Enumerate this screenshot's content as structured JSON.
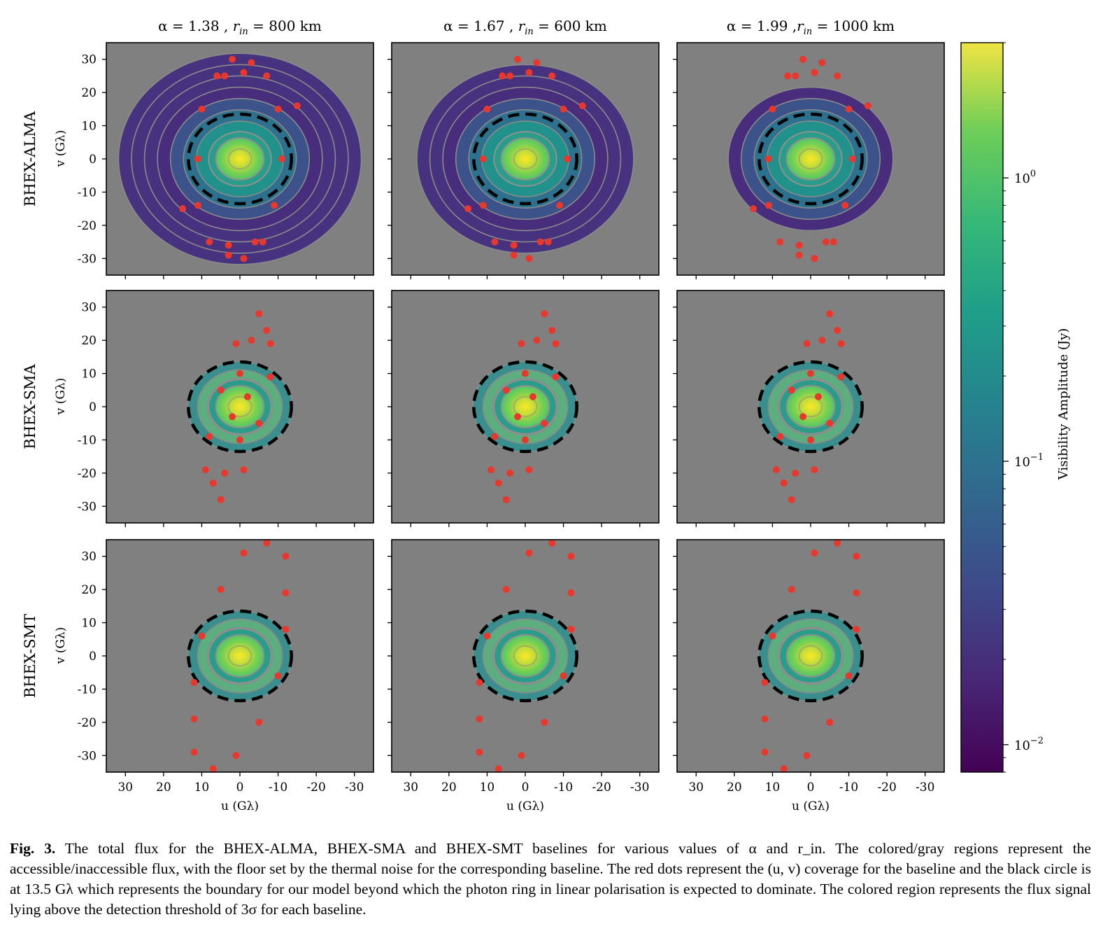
{
  "chart_data": {
    "type": "scatter",
    "figure_label": "Fig. 3.",
    "caption": "The total flux for the BHEX-ALMA, BHEX-SMA and BHEX-SMT baselines for various values of α and r_in. The colored/gray regions represent the accessible/inaccessible flux, with the floor set by the thermal noise for the corresponding baseline. The red dots represent the (u, v) coverage for the baseline and the black circle is at 13.5 Gλ which represents the boundary for our model beyond which the photon ring in linear polarisation is expected to dominate. The colored region represents the flux signal lying above the detection threshold of 3σ for each baseline.",
    "columns": [
      {
        "title": "α = 1.38 , r_in = 800 km",
        "alpha": 1.38,
        "r_in_km": 800
      },
      {
        "title": "α = 1.67 , r_in = 600 km",
        "alpha": 1.67,
        "r_in_km": 600
      },
      {
        "title": "α = 1.99 ,r_in = 1000 km",
        "alpha": 1.99,
        "r_in_km": 1000
      }
    ],
    "rows": [
      {
        "baseline": "BHEX-ALMA",
        "ylabel": "v (Gλ)",
        "visible_rings": {
          "1.38": 8,
          "1.67": 7,
          "1.99": 5
        },
        "points": [
          [
            2,
            30
          ],
          [
            -3,
            29
          ],
          [
            6,
            25
          ],
          [
            4,
            25
          ],
          [
            -1,
            26
          ],
          [
            -7,
            25
          ],
          [
            10,
            15
          ],
          [
            -10,
            15
          ],
          [
            -15,
            16
          ],
          [
            11,
            0
          ],
          [
            -11,
            0
          ],
          [
            11,
            -14
          ],
          [
            -9,
            -14
          ],
          [
            15,
            -15
          ],
          [
            8,
            -25
          ],
          [
            3,
            -26
          ],
          [
            -4,
            -25
          ],
          [
            -6,
            -25
          ],
          [
            3,
            -29
          ],
          [
            -1,
            -30
          ]
        ]
      },
      {
        "baseline": "BHEX-SMA",
        "ylabel": "v (Gλ)",
        "visible_rings": {
          "1.38": 3,
          "1.67": 3,
          "1.99": 3
        },
        "points": [
          [
            -5,
            28
          ],
          [
            -7,
            23
          ],
          [
            -3,
            20
          ],
          [
            -8,
            19
          ],
          [
            1,
            19
          ],
          [
            0,
            10
          ],
          [
            -8,
            9
          ],
          [
            5,
            5
          ],
          [
            -2,
            3
          ],
          [
            2,
            -3
          ],
          [
            -5,
            -5
          ],
          [
            8,
            -9
          ],
          [
            0,
            -10
          ],
          [
            9,
            -19
          ],
          [
            4,
            -20
          ],
          [
            -1,
            -19
          ],
          [
            7,
            -23
          ],
          [
            5,
            -28
          ]
        ]
      },
      {
        "baseline": "BHEX-SMT",
        "ylabel": "v (Gλ)",
        "visible_rings": {
          "1.38": 3,
          "1.67": 3,
          "1.99": 3
        },
        "points": [
          [
            -7,
            34
          ],
          [
            -1,
            31
          ],
          [
            -12,
            30
          ],
          [
            5,
            20
          ],
          [
            -12,
            19
          ],
          [
            -12,
            8
          ],
          [
            10,
            6
          ],
          [
            12,
            -8
          ],
          [
            -10,
            -6
          ],
          [
            12,
            -19
          ],
          [
            -5,
            -20
          ],
          [
            12,
            -29
          ],
          [
            1,
            -30
          ],
          [
            7,
            -34
          ]
        ]
      }
    ],
    "xlabel": "u (Gλ)",
    "xlim": [
      35,
      -35
    ],
    "ylim": [
      -35,
      35
    ],
    "x_ticks": [
      30,
      20,
      10,
      0,
      -10,
      -20,
      -30
    ],
    "x_tick_labels": [
      "30",
      "20",
      "10",
      "0",
      "-10",
      "-20",
      "-30"
    ],
    "y_ticks": [
      30,
      20,
      10,
      0,
      -10,
      -20,
      -30
    ],
    "y_tick_labels": [
      "30",
      "20",
      "10",
      "0",
      "-10",
      "-20",
      "-30"
    ],
    "boundary_circle_radius_glambda": 13.5,
    "colorbar": {
      "label": "Visibility Amplitude (Jy)",
      "scale": "log",
      "range": [
        0.008,
        3.0
      ],
      "tick_values": [
        1,
        0.1,
        0.01
      ],
      "tick_labels": [
        {
          "base": "10",
          "exp": "0"
        },
        {
          "base": "10",
          "exp": "−1"
        },
        {
          "base": "10",
          "exp": "−2"
        }
      ],
      "colormap": "viridis"
    },
    "colors": {
      "background": "#808080",
      "points": "#e8372c",
      "boundary": "#000000"
    }
  }
}
